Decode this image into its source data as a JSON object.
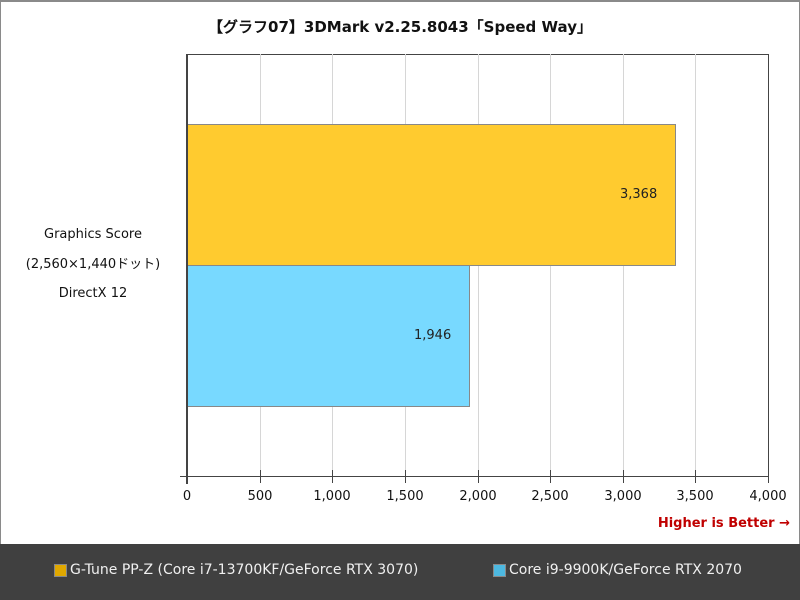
{
  "title": "【グラフ07】3DMark v2.25.8043「Speed Way」",
  "category_label": [
    "Graphics Score",
    "(2,560×1,440ドット)",
    "DirectX 12"
  ],
  "higher_is_better": "Higher is Better →",
  "ticks": [
    "0",
    "500",
    "1,000",
    "1,500",
    "2,000",
    "2,500",
    "3,000",
    "3,500",
    "4,000"
  ],
  "bars": [
    {
      "label": "3,368",
      "value": 3368,
      "color": "#ffcb2f"
    },
    {
      "label": "1,946",
      "value": 1946,
      "color": "#78d9ff"
    }
  ],
  "legend": [
    {
      "label": "G-Tune PP-Z (Core i7-13700KF/GeForce RTX 3070)",
      "color": "#e0a800"
    },
    {
      "label": "Core i9-9900K/GeForce RTX 2070",
      "color": "#4db8e0"
    }
  ],
  "chart_data": {
    "type": "bar",
    "orientation": "horizontal",
    "title": "【グラフ07】3DMark v2.25.8043「Speed Way」",
    "categories": [
      "Graphics Score (2,560×1,440ドット) DirectX 12"
    ],
    "series": [
      {
        "name": "G-Tune PP-Z (Core i7-13700KF/GeForce RTX 3070)",
        "values": [
          3368
        ],
        "color": "#ffcb2f"
      },
      {
        "name": "Core i9-9900K/GeForce RTX 2070",
        "values": [
          1946
        ],
        "color": "#78d9ff"
      }
    ],
    "xlabel": "",
    "ylabel": "",
    "xlim": [
      0,
      4000
    ],
    "xticks": [
      0,
      500,
      1000,
      1500,
      2000,
      2500,
      3000,
      3500,
      4000
    ],
    "grid": true,
    "legend_position": "bottom",
    "annotations": [
      "Higher is Better →"
    ]
  }
}
